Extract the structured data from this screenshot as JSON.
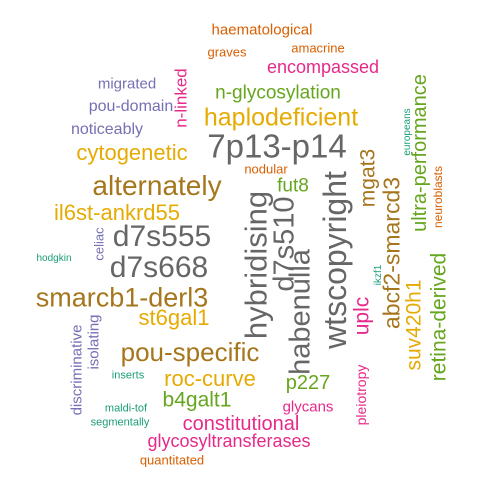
{
  "words": [
    {
      "text": "haematological",
      "color": "#d95f02"
    },
    {
      "text": "graves",
      "color": "#d95f02"
    },
    {
      "text": "amacrine",
      "color": "#d95f02"
    },
    {
      "text": "encompassed",
      "color": "#e7298a"
    },
    {
      "text": "migrated",
      "color": "#7570b3"
    },
    {
      "text": "n-glycosylation",
      "color": "#66a61e"
    },
    {
      "text": "pou-domain",
      "color": "#7570b3"
    },
    {
      "text": "haplodeficient",
      "color": "#e6ab02"
    },
    {
      "text": "noticeably",
      "color": "#7570b3"
    },
    {
      "text": "n-linked",
      "color": "#e7298a"
    },
    {
      "text": "7p13-p14",
      "color": "#666666"
    },
    {
      "text": "cytogenetic",
      "color": "#e6ab02"
    },
    {
      "text": "nodular",
      "color": "#d95f02"
    },
    {
      "text": "alternately",
      "color": "#a6761d"
    },
    {
      "text": "fut8",
      "color": "#66a61e"
    },
    {
      "text": "il6st-ankrd55",
      "color": "#e6ab02"
    },
    {
      "text": "d7s555",
      "color": "#666666"
    },
    {
      "text": "hybridising",
      "color": "#666666"
    },
    {
      "text": "d7s510",
      "color": "#666666"
    },
    {
      "text": "habenulla",
      "color": "#666666"
    },
    {
      "text": "wtscopyright",
      "color": "#666666"
    },
    {
      "text": "mgat3",
      "color": "#a6761d"
    },
    {
      "text": "abcf2-smarcd3",
      "color": "#a6761d"
    },
    {
      "text": "ultra-performance",
      "color": "#66a61e"
    },
    {
      "text": "europeans",
      "color": "#1b9e77"
    },
    {
      "text": "neuroblasts",
      "color": "#d95f02"
    },
    {
      "text": "d7s668",
      "color": "#666666"
    },
    {
      "text": "hodgkin",
      "color": "#1b9e77"
    },
    {
      "text": "celiac",
      "color": "#7570b3"
    },
    {
      "text": "smarcb1-derl3",
      "color": "#a6761d"
    },
    {
      "text": "st6gal1",
      "color": "#e6ab02"
    },
    {
      "text": "uplc",
      "color": "#e7298a"
    },
    {
      "text": "ikzf1",
      "color": "#1b9e77"
    },
    {
      "text": "suv420h1",
      "color": "#e6ab02"
    },
    {
      "text": "retina-derived",
      "color": "#66a61e"
    },
    {
      "text": "pou-specific",
      "color": "#a6761d"
    },
    {
      "text": "discriminative",
      "color": "#7570b3"
    },
    {
      "text": "isolating",
      "color": "#7570b3"
    },
    {
      "text": "roc-curve",
      "color": "#e6ab02"
    },
    {
      "text": "inserts",
      "color": "#1b9e77"
    },
    {
      "text": "p227",
      "color": "#66a61e"
    },
    {
      "text": "pleiotropy",
      "color": "#e7298a"
    },
    {
      "text": "b4galt1",
      "color": "#66a61e"
    },
    {
      "text": "maldi-tof",
      "color": "#1b9e77"
    },
    {
      "text": "glycans",
      "color": "#e7298a"
    },
    {
      "text": "segmentally",
      "color": "#1b9e77"
    },
    {
      "text": "constitutional",
      "color": "#e7298a"
    },
    {
      "text": "glycosyltransferases",
      "color": "#e7298a"
    },
    {
      "text": "quantitated",
      "color": "#d95f02"
    }
  ]
}
